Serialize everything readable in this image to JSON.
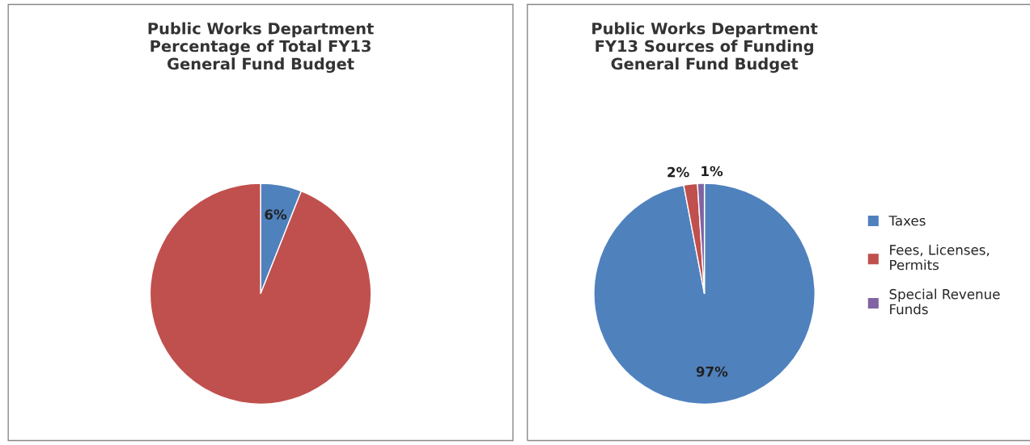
{
  "chart_data": [
    {
      "type": "pie",
      "title": "Public Works Department\nPercentage of Total FY13\nGeneral Fund Budget",
      "categories": [
        null,
        null
      ],
      "values": [
        6,
        94
      ],
      "colors": [
        "#4f81bd",
        "#c0504d"
      ],
      "value_labels": [
        "6%",
        null
      ],
      "legend": false
    },
    {
      "type": "pie",
      "title": "Public Works Department\nFY13 Sources of Funding\nGeneral Fund Budget",
      "categories": [
        "Taxes",
        "Fees, Licenses,\nPermits",
        "Special Revenue\nFunds"
      ],
      "values": [
        97,
        2,
        1
      ],
      "colors": [
        "#4f81bd",
        "#c0504d",
        "#8064a2"
      ],
      "value_labels": [
        "97%",
        "2%",
        "1%"
      ],
      "legend": "right"
    }
  ]
}
